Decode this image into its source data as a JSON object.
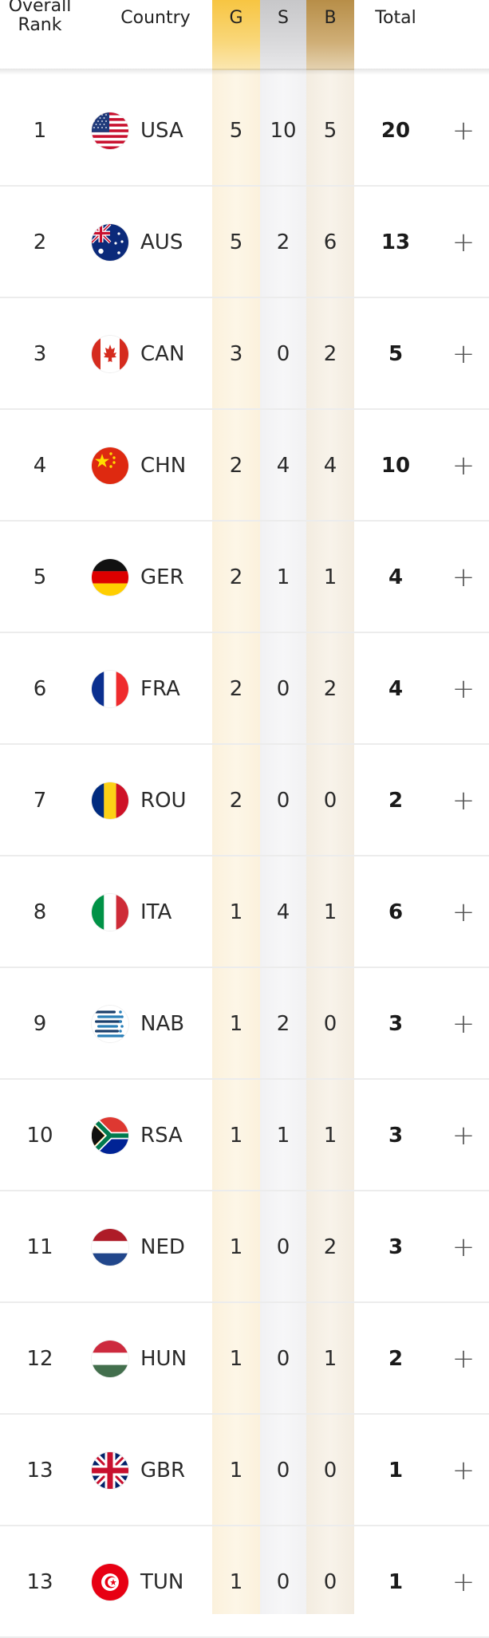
{
  "header": {
    "rank_line1": "Overall",
    "rank_line2": "Rank",
    "country": "Country",
    "gold": "G",
    "silver": "S",
    "bronze": "B",
    "total": "Total"
  },
  "expand_symbol": "+",
  "colors": {
    "gold": "#f7c542",
    "silver": "#c7c7c9",
    "bronze": "#b78e48"
  },
  "rows": [
    {
      "rank": "1",
      "flag": "usa-flag-icon",
      "code": "USA",
      "gold": "5",
      "silver": "10",
      "bronze": "5",
      "total": "20"
    },
    {
      "rank": "2",
      "flag": "aus-flag-icon",
      "code": "AUS",
      "gold": "5",
      "silver": "2",
      "bronze": "6",
      "total": "13"
    },
    {
      "rank": "3",
      "flag": "can-flag-icon",
      "code": "CAN",
      "gold": "3",
      "silver": "0",
      "bronze": "2",
      "total": "5"
    },
    {
      "rank": "4",
      "flag": "chn-flag-icon",
      "code": "CHN",
      "gold": "2",
      "silver": "4",
      "bronze": "4",
      "total": "10"
    },
    {
      "rank": "5",
      "flag": "ger-flag-icon",
      "code": "GER",
      "gold": "2",
      "silver": "1",
      "bronze": "1",
      "total": "4"
    },
    {
      "rank": "6",
      "flag": "fra-flag-icon",
      "code": "FRA",
      "gold": "2",
      "silver": "0",
      "bronze": "2",
      "total": "4"
    },
    {
      "rank": "7",
      "flag": "rou-flag-icon",
      "code": "ROU",
      "gold": "2",
      "silver": "0",
      "bronze": "0",
      "total": "2"
    },
    {
      "rank": "8",
      "flag": "ita-flag-icon",
      "code": "ITA",
      "gold": "1",
      "silver": "4",
      "bronze": "1",
      "total": "6"
    },
    {
      "rank": "9",
      "flag": "nab-flag-icon",
      "code": "NAB",
      "gold": "1",
      "silver": "2",
      "bronze": "0",
      "total": "3"
    },
    {
      "rank": "10",
      "flag": "rsa-flag-icon",
      "code": "RSA",
      "gold": "1",
      "silver": "1",
      "bronze": "1",
      "total": "3"
    },
    {
      "rank": "11",
      "flag": "ned-flag-icon",
      "code": "NED",
      "gold": "1",
      "silver": "0",
      "bronze": "2",
      "total": "3"
    },
    {
      "rank": "12",
      "flag": "hun-flag-icon",
      "code": "HUN",
      "gold": "1",
      "silver": "0",
      "bronze": "1",
      "total": "2"
    },
    {
      "rank": "13",
      "flag": "gbr-flag-icon",
      "code": "GBR",
      "gold": "1",
      "silver": "0",
      "bronze": "0",
      "total": "1"
    },
    {
      "rank": "13",
      "flag": "tun-flag-icon",
      "code": "TUN",
      "gold": "1",
      "silver": "0",
      "bronze": "0",
      "total": "1"
    }
  ]
}
